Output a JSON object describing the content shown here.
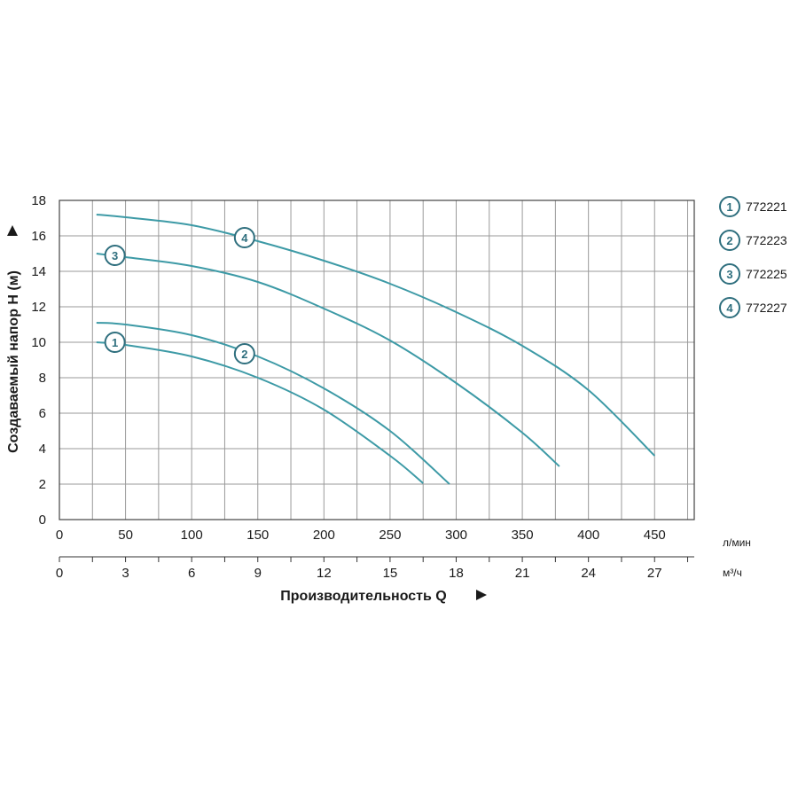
{
  "chart_data": {
    "type": "line",
    "ylabel": "Создаваемый напор Н (м)",
    "xlabel": "Производительность Q",
    "x_unit": "л/мин",
    "x2_unit": "м³/ч",
    "xlim": [
      0,
      480
    ],
    "ylim": [
      0,
      18
    ],
    "x_ticks": [
      0,
      50,
      100,
      150,
      200,
      250,
      300,
      350,
      400,
      450
    ],
    "x2_ticks": [
      0,
      3,
      6,
      9,
      12,
      15,
      18,
      21,
      24,
      27
    ],
    "y_ticks": [
      0,
      2,
      4,
      6,
      8,
      10,
      12,
      14,
      16,
      18
    ],
    "grid": true,
    "line_color": "#3d9aa6",
    "legend_position": "right",
    "series": [
      {
        "marker": "1",
        "name": "772221",
        "label_at": [
          42,
          10.0
        ],
        "points": [
          [
            28,
            10.0
          ],
          [
            50,
            9.85
          ],
          [
            100,
            9.2
          ],
          [
            150,
            8.0
          ],
          [
            200,
            6.2
          ],
          [
            250,
            3.6
          ],
          [
            275,
            2.05
          ]
        ]
      },
      {
        "marker": "2",
        "name": "772223",
        "label_at": [
          140,
          9.35
        ],
        "points": [
          [
            28,
            11.1
          ],
          [
            50,
            11.0
          ],
          [
            100,
            10.4
          ],
          [
            150,
            9.2
          ],
          [
            200,
            7.4
          ],
          [
            250,
            5.0
          ],
          [
            295,
            2.0
          ]
        ]
      },
      {
        "marker": "3",
        "name": "772225",
        "label_at": [
          42,
          14.9
        ],
        "points": [
          [
            28,
            15.0
          ],
          [
            50,
            14.8
          ],
          [
            100,
            14.3
          ],
          [
            150,
            13.4
          ],
          [
            200,
            11.9
          ],
          [
            250,
            10.1
          ],
          [
            300,
            7.7
          ],
          [
            350,
            4.9
          ],
          [
            378,
            3.0
          ]
        ]
      },
      {
        "marker": "4",
        "name": "772227",
        "label_at": [
          140,
          15.9
        ],
        "points": [
          [
            28,
            17.2
          ],
          [
            50,
            17.05
          ],
          [
            100,
            16.6
          ],
          [
            150,
            15.7
          ],
          [
            200,
            14.6
          ],
          [
            250,
            13.3
          ],
          [
            300,
            11.7
          ],
          [
            350,
            9.8
          ],
          [
            400,
            7.3
          ],
          [
            450,
            3.6
          ]
        ]
      }
    ]
  }
}
